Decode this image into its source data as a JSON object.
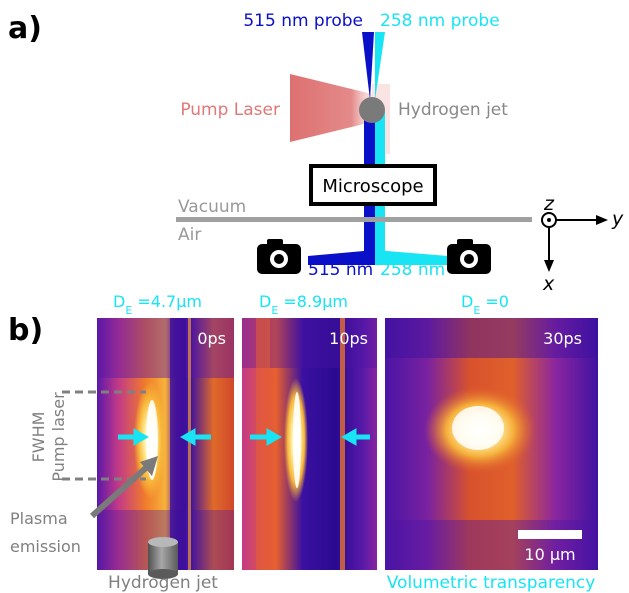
{
  "panel_a": {
    "label": "a)",
    "probe_515_label": "515 nm probe",
    "probe_258_label": "258 nm probe",
    "pump_label": "Pump Laser",
    "jet_label": "Hydrogen jet",
    "microscope_label": "Microscope",
    "vacuum_label": "Vacuum",
    "air_label": "Air",
    "cam_515_label": "515 nm",
    "cam_258_label": "258 nm",
    "axis_z": "z",
    "axis_y": "y",
    "axis_x": "x",
    "colors": {
      "blue": "#0a10c8",
      "cyan": "#18e4f4",
      "pump": "#e07878",
      "gray": "#888888"
    }
  },
  "panel_b": {
    "label": "b)",
    "panels": [
      {
        "de_main": "D",
        "de_sub": "E",
        "de_value": " =4.7µm",
        "time": "0ps"
      },
      {
        "de_main": "D",
        "de_sub": "E",
        "de_value": " =8.9µm",
        "time": "10ps"
      },
      {
        "de_main": "D",
        "de_sub": "E",
        "de_value": " =0",
        "time": "30ps"
      }
    ],
    "fwhm_line1": "FWHM",
    "fwhm_line2": "Pump laser",
    "plasma_line1": "Plasma",
    "plasma_line2": "emission",
    "jet_label": "Hydrogen jet",
    "scale_label": "10 µm",
    "transparency_label": "Volumetric transparency"
  }
}
